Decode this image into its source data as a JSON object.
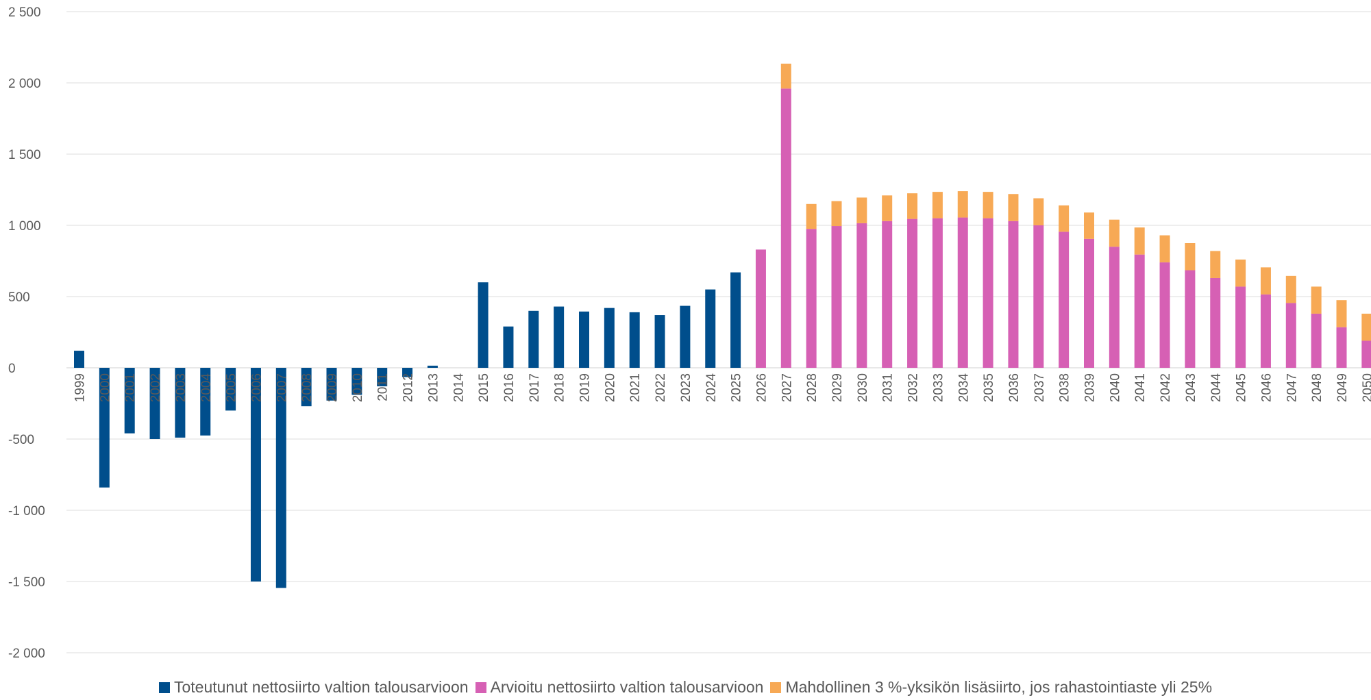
{
  "chart_data": {
    "type": "bar",
    "stacked": true,
    "categories": [
      "1999",
      "2000",
      "2001",
      "2002",
      "2003",
      "2004",
      "2005",
      "2006",
      "2007",
      "2008",
      "2009",
      "2010",
      "2011",
      "2012",
      "2013",
      "2014",
      "2015",
      "2016",
      "2017",
      "2018",
      "2019",
      "2020",
      "2021",
      "2022",
      "2023",
      "2024",
      "2025",
      "2026",
      "2027",
      "2028",
      "2029",
      "2030",
      "2031",
      "2032",
      "2033",
      "2034",
      "2035",
      "2036",
      "2037",
      "2038",
      "2039",
      "2040",
      "2041",
      "2042",
      "2043",
      "2044",
      "2045",
      "2046",
      "2047",
      "2048",
      "2049",
      "2050"
    ],
    "series": [
      {
        "name": "Toteutunut nettosiirto valtion talousarvioon",
        "color": "#004E8C",
        "values": [
          120,
          -840,
          -460,
          -500,
          -490,
          -475,
          -300,
          -1500,
          -1545,
          -270,
          -230,
          -190,
          -130,
          -65,
          15,
          0,
          600,
          290,
          400,
          430,
          395,
          420,
          390,
          370,
          435,
          550,
          670,
          null,
          null,
          null,
          null,
          null,
          null,
          null,
          null,
          null,
          null,
          null,
          null,
          null,
          null,
          null,
          null,
          null,
          null,
          null,
          null,
          null,
          null,
          null,
          null,
          null
        ]
      },
      {
        "name": "Arvioitu nettosiirto valtion talousarvioon",
        "color": "#D660B4",
        "values": [
          null,
          null,
          null,
          null,
          null,
          null,
          null,
          null,
          null,
          null,
          null,
          null,
          null,
          null,
          null,
          null,
          null,
          null,
          null,
          null,
          null,
          null,
          null,
          null,
          null,
          null,
          null,
          830,
          1960,
          975,
          995,
          1015,
          1030,
          1045,
          1050,
          1055,
          1050,
          1030,
          1000,
          955,
          905,
          850,
          795,
          740,
          685,
          630,
          570,
          515,
          455,
          380,
          285,
          190
        ]
      },
      {
        "name": "Mahdollinen 3 %-yksikön lisäsiirto, jos rahastointiaste yli 25%",
        "color": "#F7A955",
        "values": [
          null,
          null,
          null,
          null,
          null,
          null,
          null,
          null,
          null,
          null,
          null,
          null,
          null,
          null,
          null,
          null,
          null,
          null,
          null,
          null,
          null,
          null,
          null,
          null,
          null,
          null,
          null,
          0,
          175,
          175,
          175,
          180,
          180,
          180,
          185,
          185,
          185,
          190,
          190,
          185,
          185,
          190,
          190,
          190,
          190,
          190,
          190,
          190,
          190,
          190,
          190,
          190
        ]
      }
    ],
    "y_ticks": [
      "2 500",
      "2 000",
      "1 500",
      "1 000",
      "500",
      "0",
      "-500",
      "-1 000",
      "-1 500",
      "-2 000"
    ],
    "y_tick_values": [
      2500,
      2000,
      1500,
      1000,
      500,
      0,
      -500,
      -1000,
      -1500,
      -2000
    ],
    "ylim": [
      -2000,
      2500
    ],
    "grid": true,
    "legend_position": "bottom"
  }
}
